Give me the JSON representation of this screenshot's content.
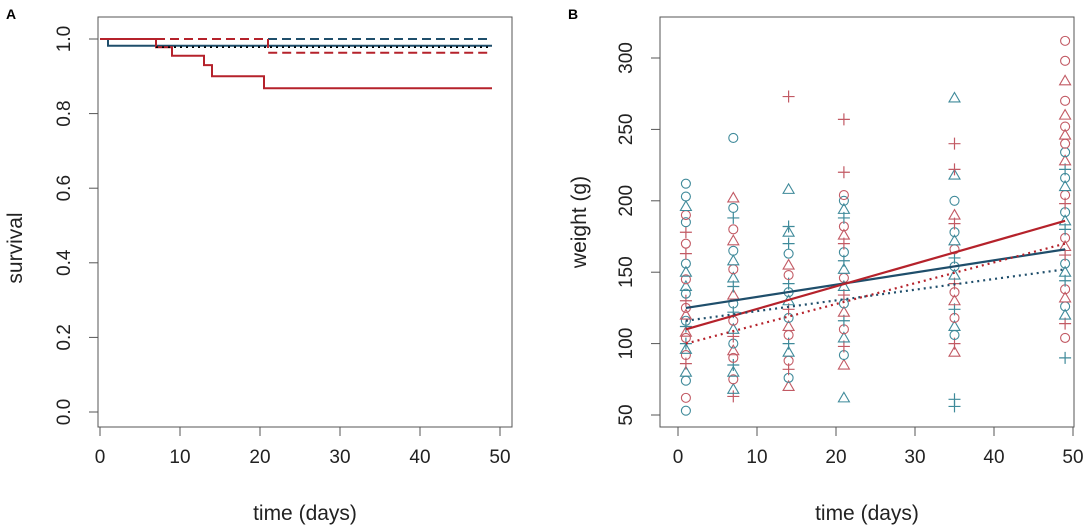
{
  "colors": {
    "blue": "#1f4e6b",
    "red": "#b5222b",
    "blue_light": "#3f8a9a",
    "red_light": "#c25a64",
    "black": "#000000"
  },
  "chart_data": [
    {
      "panel": "A",
      "type": "line",
      "xlabel": "time (days)",
      "ylabel": "survival",
      "xlim": [
        0,
        50
      ],
      "ylim": [
        0,
        1
      ],
      "xticks": [
        "0",
        "10",
        "20",
        "30",
        "40",
        "50"
      ],
      "yticks": [
        "0.0",
        "0.2",
        "0.4",
        "0.6",
        "0.8",
        "1.0"
      ],
      "series": [
        {
          "name": "blue-solid",
          "color": "blue",
          "dash": "solid",
          "x": [
            0,
            1,
            1,
            49
          ],
          "y": [
            1.0,
            1.0,
            0.982,
            0.982
          ]
        },
        {
          "name": "blue-dashed",
          "color": "blue",
          "dash": "dashed",
          "x": [
            0,
            49
          ],
          "y": [
            1.0,
            1.0
          ]
        },
        {
          "name": "red-solid",
          "color": "red",
          "dash": "solid",
          "x": [
            0,
            7,
            7,
            9,
            9,
            13,
            13,
            14,
            14,
            20.5,
            20.5,
            49
          ],
          "y": [
            1.0,
            1.0,
            0.978,
            0.978,
            0.955,
            0.955,
            0.93,
            0.93,
            0.9,
            0.9,
            0.868,
            0.868
          ]
        },
        {
          "name": "red-dashed",
          "color": "red",
          "dash": "dashed",
          "x": [
            0,
            21,
            21,
            49
          ],
          "y": [
            1.0,
            1.0,
            0.963,
            0.963
          ]
        },
        {
          "name": "black-dotted",
          "color": "black",
          "dash": "dotted",
          "x": [
            7,
            49
          ],
          "y": [
            0.978,
            0.978
          ]
        }
      ]
    },
    {
      "panel": "B",
      "type": "scatter",
      "xlabel": "time (days)",
      "ylabel": "weight (g)",
      "xlim": [
        0,
        50
      ],
      "ylim": [
        50,
        310
      ],
      "xticks": [
        "0",
        "10",
        "20",
        "30",
        "40",
        "50"
      ],
      "yticks": [
        "50",
        "100",
        "150",
        "200",
        "250",
        "300"
      ],
      "lines": [
        {
          "name": "blue-solid-fit",
          "color": "blue",
          "dash": "solid",
          "x": [
            1,
            49
          ],
          "y": [
            125,
            166
          ]
        },
        {
          "name": "red-solid-fit",
          "color": "red",
          "dash": "solid",
          "x": [
            1,
            49
          ],
          "y": [
            110,
            186
          ]
        },
        {
          "name": "blue-dotted-fit",
          "color": "blue",
          "dash": "dotted",
          "x": [
            1,
            49
          ],
          "y": [
            116,
            152
          ]
        },
        {
          "name": "red-dotted-fit",
          "color": "red",
          "dash": "dotted",
          "x": [
            1,
            49
          ],
          "y": [
            100,
            170
          ]
        }
      ],
      "points": [
        {
          "x": 1,
          "y": 53,
          "m": "o",
          "c": "b"
        },
        {
          "x": 1,
          "y": 62,
          "m": "o",
          "c": "r"
        },
        {
          "x": 1,
          "y": 74,
          "m": "o",
          "c": "b"
        },
        {
          "x": 1,
          "y": 80,
          "m": "^",
          "c": "b"
        },
        {
          "x": 1,
          "y": 86,
          "m": "+",
          "c": "r"
        },
        {
          "x": 1,
          "y": 92,
          "m": "o",
          "c": "r"
        },
        {
          "x": 1,
          "y": 96,
          "m": "^",
          "c": "b"
        },
        {
          "x": 1,
          "y": 100,
          "m": "+",
          "c": "b"
        },
        {
          "x": 1,
          "y": 104,
          "m": "o",
          "c": "r"
        },
        {
          "x": 1,
          "y": 108,
          "m": "^",
          "c": "r"
        },
        {
          "x": 1,
          "y": 112,
          "m": "+",
          "c": "b"
        },
        {
          "x": 1,
          "y": 116,
          "m": "o",
          "c": "b"
        },
        {
          "x": 1,
          "y": 120,
          "m": "^",
          "c": "r"
        },
        {
          "x": 1,
          "y": 125,
          "m": "o",
          "c": "r"
        },
        {
          "x": 1,
          "y": 130,
          "m": "+",
          "c": "r"
        },
        {
          "x": 1,
          "y": 135,
          "m": "o",
          "c": "b"
        },
        {
          "x": 1,
          "y": 140,
          "m": "^",
          "c": "b"
        },
        {
          "x": 1,
          "y": 145,
          "m": "o",
          "c": "r"
        },
        {
          "x": 1,
          "y": 150,
          "m": "^",
          "c": "b"
        },
        {
          "x": 1,
          "y": 156,
          "m": "o",
          "c": "b"
        },
        {
          "x": 1,
          "y": 163,
          "m": "+",
          "c": "r"
        },
        {
          "x": 1,
          "y": 170,
          "m": "o",
          "c": "r"
        },
        {
          "x": 1,
          "y": 178,
          "m": "+",
          "c": "r"
        },
        {
          "x": 1,
          "y": 185,
          "m": "o",
          "c": "b"
        },
        {
          "x": 1,
          "y": 190,
          "m": "o",
          "c": "r"
        },
        {
          "x": 1,
          "y": 196,
          "m": "^",
          "c": "b"
        },
        {
          "x": 1,
          "y": 203,
          "m": "o",
          "c": "b"
        },
        {
          "x": 1,
          "y": 212,
          "m": "o",
          "c": "b"
        },
        {
          "x": 7,
          "y": 63,
          "m": "+",
          "c": "r"
        },
        {
          "x": 7,
          "y": 68,
          "m": "^",
          "c": "b"
        },
        {
          "x": 7,
          "y": 75,
          "m": "o",
          "c": "r"
        },
        {
          "x": 7,
          "y": 80,
          "m": "^",
          "c": "b"
        },
        {
          "x": 7,
          "y": 85,
          "m": "+",
          "c": "b"
        },
        {
          "x": 7,
          "y": 90,
          "m": "o",
          "c": "r"
        },
        {
          "x": 7,
          "y": 95,
          "m": "^",
          "c": "r"
        },
        {
          "x": 7,
          "y": 100,
          "m": "o",
          "c": "b"
        },
        {
          "x": 7,
          "y": 105,
          "m": "+",
          "c": "r"
        },
        {
          "x": 7,
          "y": 110,
          "m": "^",
          "c": "b"
        },
        {
          "x": 7,
          "y": 116,
          "m": "o",
          "c": "r"
        },
        {
          "x": 7,
          "y": 122,
          "m": "+",
          "c": "b"
        },
        {
          "x": 7,
          "y": 128,
          "m": "o",
          "c": "b"
        },
        {
          "x": 7,
          "y": 134,
          "m": "^",
          "c": "r"
        },
        {
          "x": 7,
          "y": 140,
          "m": "+",
          "c": "b"
        },
        {
          "x": 7,
          "y": 146,
          "m": "^",
          "c": "b"
        },
        {
          "x": 7,
          "y": 152,
          "m": "o",
          "c": "r"
        },
        {
          "x": 7,
          "y": 158,
          "m": "^",
          "c": "b"
        },
        {
          "x": 7,
          "y": 165,
          "m": "o",
          "c": "b"
        },
        {
          "x": 7,
          "y": 172,
          "m": "^",
          "c": "r"
        },
        {
          "x": 7,
          "y": 180,
          "m": "o",
          "c": "r"
        },
        {
          "x": 7,
          "y": 188,
          "m": "+",
          "c": "b"
        },
        {
          "x": 7,
          "y": 195,
          "m": "o",
          "c": "b"
        },
        {
          "x": 7,
          "y": 202,
          "m": "^",
          "c": "r"
        },
        {
          "x": 7,
          "y": 244,
          "m": "o",
          "c": "b"
        },
        {
          "x": 14,
          "y": 70,
          "m": "^",
          "c": "r"
        },
        {
          "x": 14,
          "y": 76,
          "m": "o",
          "c": "b"
        },
        {
          "x": 14,
          "y": 82,
          "m": "+",
          "c": "r"
        },
        {
          "x": 14,
          "y": 88,
          "m": "o",
          "c": "r"
        },
        {
          "x": 14,
          "y": 94,
          "m": "^",
          "c": "b"
        },
        {
          "x": 14,
          "y": 100,
          "m": "+",
          "c": "b"
        },
        {
          "x": 14,
          "y": 106,
          "m": "o",
          "c": "r"
        },
        {
          "x": 14,
          "y": 112,
          "m": "^",
          "c": "r"
        },
        {
          "x": 14,
          "y": 118,
          "m": "o",
          "c": "b"
        },
        {
          "x": 14,
          "y": 124,
          "m": "+",
          "c": "r"
        },
        {
          "x": 14,
          "y": 130,
          "m": "^",
          "c": "b"
        },
        {
          "x": 14,
          "y": 136,
          "m": "o",
          "c": "b"
        },
        {
          "x": 14,
          "y": 142,
          "m": "+",
          "c": "b"
        },
        {
          "x": 14,
          "y": 148,
          "m": "o",
          "c": "r"
        },
        {
          "x": 14,
          "y": 155,
          "m": "^",
          "c": "r"
        },
        {
          "x": 14,
          "y": 163,
          "m": "o",
          "c": "b"
        },
        {
          "x": 14,
          "y": 170,
          "m": "+",
          "c": "b"
        },
        {
          "x": 14,
          "y": 178,
          "m": "^",
          "c": "b"
        },
        {
          "x": 14,
          "y": 182,
          "m": "+",
          "c": "b"
        },
        {
          "x": 14,
          "y": 208,
          "m": "^",
          "c": "b"
        },
        {
          "x": 14,
          "y": 273,
          "m": "+",
          "c": "r"
        },
        {
          "x": 21,
          "y": 62,
          "m": "^",
          "c": "b"
        },
        {
          "x": 21,
          "y": 85,
          "m": "^",
          "c": "r"
        },
        {
          "x": 21,
          "y": 92,
          "m": "o",
          "c": "b"
        },
        {
          "x": 21,
          "y": 98,
          "m": "+",
          "c": "r"
        },
        {
          "x": 21,
          "y": 104,
          "m": "^",
          "c": "b"
        },
        {
          "x": 21,
          "y": 110,
          "m": "o",
          "c": "r"
        },
        {
          "x": 21,
          "y": 116,
          "m": "+",
          "c": "b"
        },
        {
          "x": 21,
          "y": 122,
          "m": "^",
          "c": "r"
        },
        {
          "x": 21,
          "y": 128,
          "m": "o",
          "c": "b"
        },
        {
          "x": 21,
          "y": 134,
          "m": "+",
          "c": "r"
        },
        {
          "x": 21,
          "y": 140,
          "m": "^",
          "c": "b"
        },
        {
          "x": 21,
          "y": 146,
          "m": "o",
          "c": "r"
        },
        {
          "x": 21,
          "y": 152,
          "m": "^",
          "c": "b"
        },
        {
          "x": 21,
          "y": 158,
          "m": "+",
          "c": "b"
        },
        {
          "x": 21,
          "y": 164,
          "m": "o",
          "c": "b"
        },
        {
          "x": 21,
          "y": 170,
          "m": "+",
          "c": "r"
        },
        {
          "x": 21,
          "y": 176,
          "m": "^",
          "c": "r"
        },
        {
          "x": 21,
          "y": 182,
          "m": "o",
          "c": "r"
        },
        {
          "x": 21,
          "y": 188,
          "m": "+",
          "c": "b"
        },
        {
          "x": 21,
          "y": 194,
          "m": "^",
          "c": "b"
        },
        {
          "x": 21,
          "y": 200,
          "m": "o",
          "c": "b"
        },
        {
          "x": 21,
          "y": 204,
          "m": "o",
          "c": "r"
        },
        {
          "x": 21,
          "y": 220,
          "m": "+",
          "c": "r"
        },
        {
          "x": 21,
          "y": 257,
          "m": "+",
          "c": "r"
        },
        {
          "x": 35,
          "y": 56,
          "m": "+",
          "c": "b"
        },
        {
          "x": 35,
          "y": 61,
          "m": "+",
          "c": "b"
        },
        {
          "x": 35,
          "y": 94,
          "m": "^",
          "c": "r"
        },
        {
          "x": 35,
          "y": 100,
          "m": "+",
          "c": "r"
        },
        {
          "x": 35,
          "y": 106,
          "m": "o",
          "c": "b"
        },
        {
          "x": 35,
          "y": 112,
          "m": "^",
          "c": "b"
        },
        {
          "x": 35,
          "y": 118,
          "m": "o",
          "c": "r"
        },
        {
          "x": 35,
          "y": 124,
          "m": "+",
          "c": "b"
        },
        {
          "x": 35,
          "y": 130,
          "m": "^",
          "c": "r"
        },
        {
          "x": 35,
          "y": 136,
          "m": "o",
          "c": "r"
        },
        {
          "x": 35,
          "y": 142,
          "m": "+",
          "c": "r"
        },
        {
          "x": 35,
          "y": 148,
          "m": "^",
          "c": "b"
        },
        {
          "x": 35,
          "y": 154,
          "m": "o",
          "c": "b"
        },
        {
          "x": 35,
          "y": 160,
          "m": "+",
          "c": "b"
        },
        {
          "x": 35,
          "y": 166,
          "m": "o",
          "c": "r"
        },
        {
          "x": 35,
          "y": 172,
          "m": "^",
          "c": "b"
        },
        {
          "x": 35,
          "y": 178,
          "m": "o",
          "c": "b"
        },
        {
          "x": 35,
          "y": 184,
          "m": "+",
          "c": "r"
        },
        {
          "x": 35,
          "y": 190,
          "m": "^",
          "c": "r"
        },
        {
          "x": 35,
          "y": 200,
          "m": "o",
          "c": "b"
        },
        {
          "x": 35,
          "y": 218,
          "m": "^",
          "c": "b"
        },
        {
          "x": 35,
          "y": 222,
          "m": "+",
          "c": "r"
        },
        {
          "x": 35,
          "y": 240,
          "m": "+",
          "c": "r"
        },
        {
          "x": 35,
          "y": 272,
          "m": "^",
          "c": "b"
        },
        {
          "x": 49,
          "y": 90,
          "m": "+",
          "c": "b"
        },
        {
          "x": 49,
          "y": 104,
          "m": "o",
          "c": "r"
        },
        {
          "x": 49,
          "y": 114,
          "m": "+",
          "c": "r"
        },
        {
          "x": 49,
          "y": 120,
          "m": "^",
          "c": "b"
        },
        {
          "x": 49,
          "y": 126,
          "m": "o",
          "c": "b"
        },
        {
          "x": 49,
          "y": 132,
          "m": "^",
          "c": "r"
        },
        {
          "x": 49,
          "y": 138,
          "m": "o",
          "c": "r"
        },
        {
          "x": 49,
          "y": 144,
          "m": "+",
          "c": "b"
        },
        {
          "x": 49,
          "y": 150,
          "m": "^",
          "c": "b"
        },
        {
          "x": 49,
          "y": 156,
          "m": "o",
          "c": "b"
        },
        {
          "x": 49,
          "y": 162,
          "m": "+",
          "c": "r"
        },
        {
          "x": 49,
          "y": 168,
          "m": "^",
          "c": "r"
        },
        {
          "x": 49,
          "y": 174,
          "m": "o",
          "c": "r"
        },
        {
          "x": 49,
          "y": 180,
          "m": "+",
          "c": "b"
        },
        {
          "x": 49,
          "y": 186,
          "m": "^",
          "c": "b"
        },
        {
          "x": 49,
          "y": 192,
          "m": "o",
          "c": "b"
        },
        {
          "x": 49,
          "y": 198,
          "m": "+",
          "c": "r"
        },
        {
          "x": 49,
          "y": 204,
          "m": "o",
          "c": "r"
        },
        {
          "x": 49,
          "y": 210,
          "m": "^",
          "c": "b"
        },
        {
          "x": 49,
          "y": 216,
          "m": "o",
          "c": "b"
        },
        {
          "x": 49,
          "y": 222,
          "m": "+",
          "c": "b"
        },
        {
          "x": 49,
          "y": 228,
          "m": "^",
          "c": "r"
        },
        {
          "x": 49,
          "y": 234,
          "m": "o",
          "c": "b"
        },
        {
          "x": 49,
          "y": 240,
          "m": "o",
          "c": "r"
        },
        {
          "x": 49,
          "y": 246,
          "m": "^",
          "c": "r"
        },
        {
          "x": 49,
          "y": 252,
          "m": "o",
          "c": "r"
        },
        {
          "x": 49,
          "y": 260,
          "m": "^",
          "c": "r"
        },
        {
          "x": 49,
          "y": 270,
          "m": "o",
          "c": "r"
        },
        {
          "x": 49,
          "y": 284,
          "m": "^",
          "c": "r"
        },
        {
          "x": 49,
          "y": 298,
          "m": "o",
          "c": "r"
        },
        {
          "x": 49,
          "y": 312,
          "m": "o",
          "c": "r"
        }
      ]
    }
  ]
}
